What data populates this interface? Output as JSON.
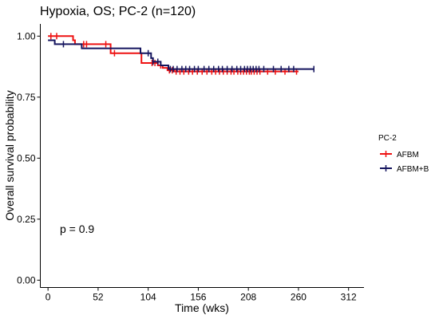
{
  "chart_data": {
    "type": "line",
    "subtype": "kaplan-meier-step",
    "title": "Hypoxia,  OS; PC-2 (n=120)",
    "xlabel": "Time (wks)",
    "ylabel": "Overall survival probability",
    "xlim": [
      -8,
      328
    ],
    "ylim": [
      -0.03,
      1.05
    ],
    "xticks": [
      0,
      52,
      104,
      156,
      208,
      260,
      312
    ],
    "yticks": [
      0.0,
      0.25,
      0.5,
      0.75,
      1.0
    ],
    "ytick_labels": [
      "0.00",
      "0.25",
      "0.50",
      "0.75",
      "1.00"
    ],
    "grid": false,
    "annotation": "p = 0.9",
    "legend": {
      "title": "PC-2",
      "position": "right",
      "entries": [
        "AFBM",
        "AFBM+B"
      ]
    },
    "series": [
      {
        "name": "AFBM",
        "color": "#ee1111",
        "steps": [
          [
            0,
            1.0
          ],
          [
            26,
            0.983
          ],
          [
            28,
            0.967
          ],
          [
            65,
            0.93
          ],
          [
            97,
            0.89
          ],
          [
            114,
            0.88
          ],
          [
            119,
            0.87
          ],
          [
            124,
            0.86
          ],
          [
            131,
            0.855
          ],
          [
            260,
            0.855
          ]
        ],
        "censor_x": [
          3,
          9,
          37,
          40,
          60,
          69,
          108,
          111,
          117,
          126,
          129,
          133,
          137,
          141,
          146,
          150,
          155,
          160,
          165,
          170,
          174,
          178,
          182,
          186,
          190,
          193,
          197,
          200,
          203,
          206,
          209,
          211,
          214,
          217,
          220,
          228,
          236,
          246,
          258
        ]
      },
      {
        "name": "AFBM+B",
        "color": "#14145e",
        "steps": [
          [
            0,
            0.983
          ],
          [
            7,
            0.967
          ],
          [
            35,
            0.95
          ],
          [
            96,
            0.93
          ],
          [
            107,
            0.91
          ],
          [
            109,
            0.895
          ],
          [
            117,
            0.88
          ],
          [
            125,
            0.865
          ],
          [
            276,
            0.865
          ]
        ],
        "censor_x": [
          16,
          104,
          109,
          114,
          127,
          130,
          134,
          139,
          143,
          147,
          152,
          156,
          162,
          167,
          172,
          177,
          181,
          186,
          191,
          196,
          200,
          204,
          207,
          210,
          213,
          216,
          219,
          224,
          234,
          242,
          250,
          255,
          276
        ]
      }
    ]
  }
}
